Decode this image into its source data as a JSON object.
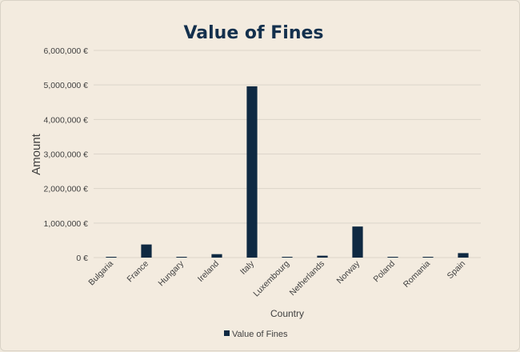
{
  "chart_data": {
    "type": "bar",
    "title": "Value of Fines",
    "xlabel": "Country",
    "ylabel": "Amount",
    "categories": [
      "Bulgaria",
      "France",
      "Hungary",
      "Ireland",
      "Italy",
      "Luxembourg",
      "Netherlands",
      "Norway",
      "Poland",
      "Romania",
      "Spain"
    ],
    "series": [
      {
        "name": "Value of Fines",
        "values": [
          5000,
          380000,
          8000,
          100000,
          4960000,
          3000,
          55000,
          900000,
          10000,
          8000,
          130000
        ]
      }
    ],
    "ylim": [
      0,
      6000000
    ],
    "yticks": [
      "0 €",
      "1,000,000 €",
      "2,000,000 €",
      "3,000,000 €",
      "4,000,000 €",
      "5,000,000 €",
      "6,000,000 €"
    ],
    "grid": true,
    "legend": "bottom",
    "bar_color": "#0f2942",
    "grid_color": "#dcd5ca"
  }
}
